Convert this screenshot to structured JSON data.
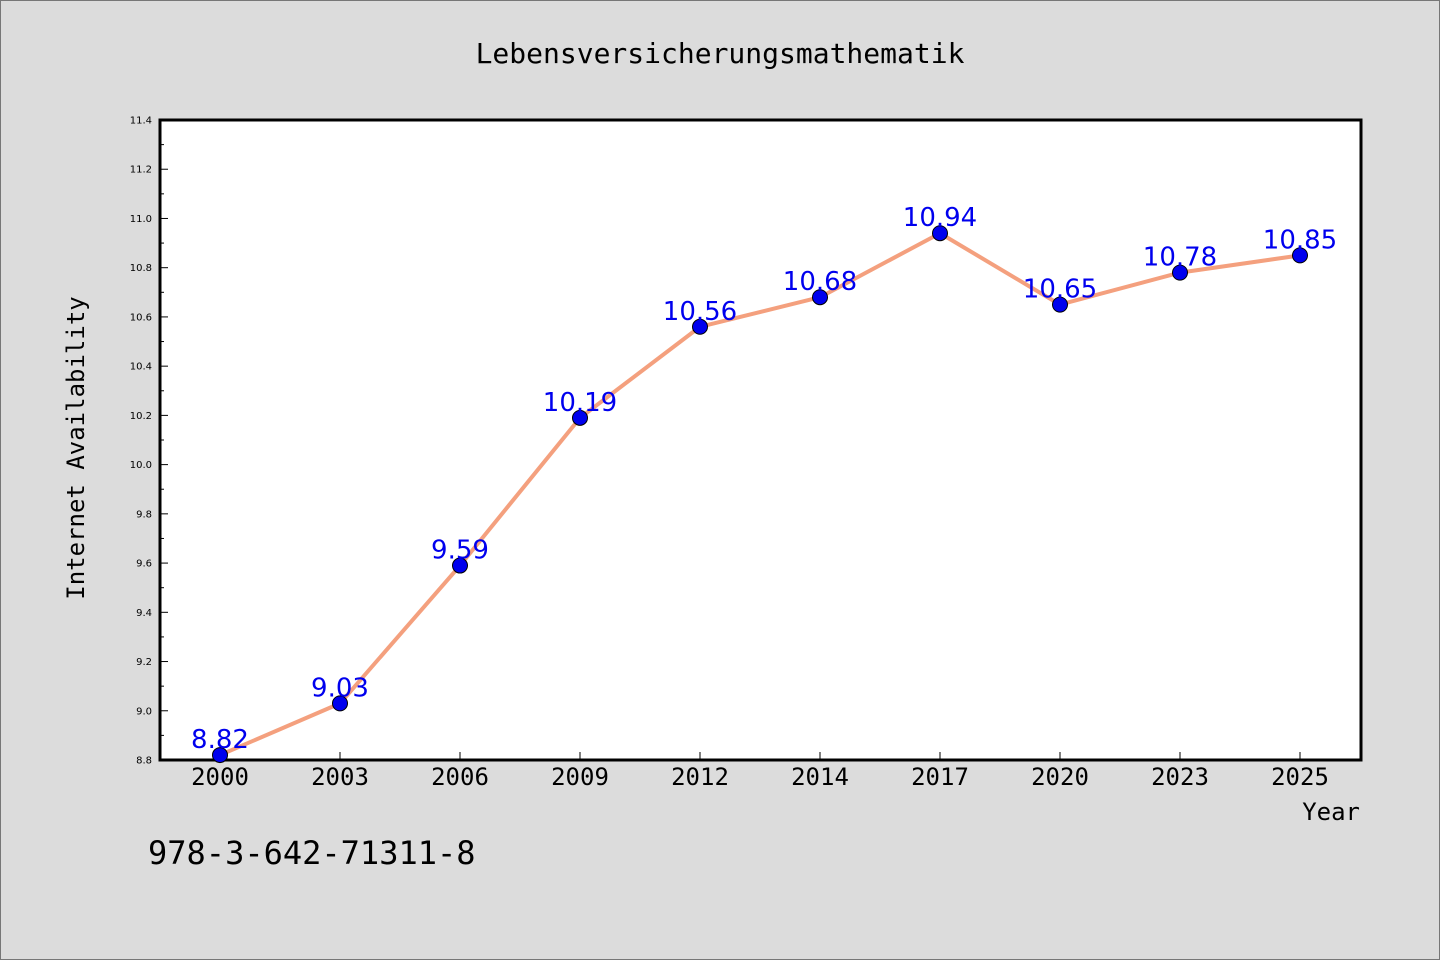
{
  "chart_data": {
    "type": "line",
    "title": "Lebensversicherungsmathematik",
    "xlabel": "Year",
    "ylabel": "Internet Availability",
    "categories": [
      "2000",
      "2003",
      "2006",
      "2009",
      "2012",
      "2014",
      "2017",
      "2020",
      "2023",
      "2025"
    ],
    "series": [
      {
        "values": [
          8.82,
          9.03,
          9.59,
          10.19,
          10.56,
          10.68,
          10.94,
          10.65,
          10.78,
          10.85
        ],
        "line_color": "#f4a07e",
        "marker_color": "#0000ee",
        "label_color": "#0000ee"
      }
    ],
    "ylim": [
      8.8,
      11.4
    ],
    "yticks": [
      "8.8",
      "9.0",
      "9.2",
      "9.4",
      "9.6",
      "9.8",
      "10.0",
      "10.2",
      "10.4",
      "10.6",
      "10.8",
      "11.0",
      "11.2",
      "11.4"
    ],
    "grid": false,
    "legend": "none"
  },
  "footer_text": "978-3-642-71311-8"
}
